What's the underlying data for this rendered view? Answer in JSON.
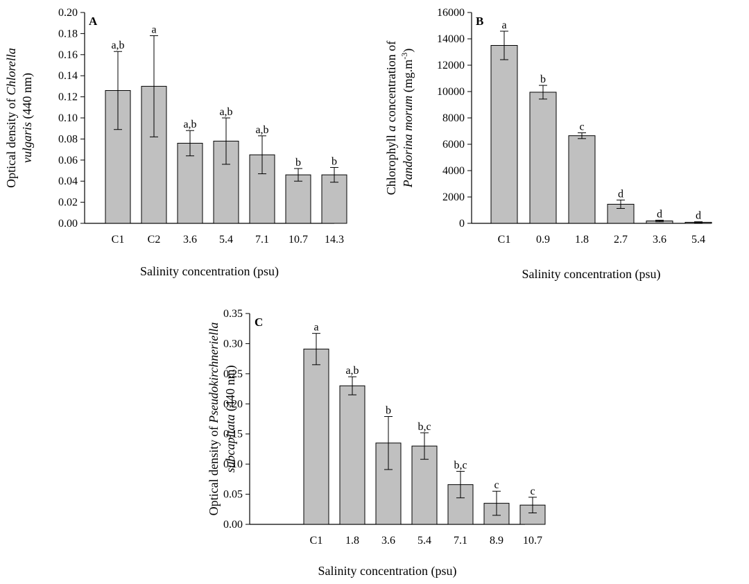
{
  "chart_data": [
    {
      "panel": "A",
      "type": "bar",
      "xlabel": "Salinity concentration (psu)",
      "ylabel": [
        {
          "text": "Optical density of "
        },
        {
          "text": "Chlorella",
          "italic": true
        },
        {
          "text": "vulgaris",
          "italic": true
        },
        {
          "text": " (440 nm)"
        }
      ],
      "ylim": [
        0,
        0.2
      ],
      "yticks": [
        "0.00",
        "0.02",
        "0.04",
        "0.06",
        "0.08",
        "0.10",
        "0.12",
        "0.14",
        "0.16",
        "0.18",
        "0.20"
      ],
      "categories": [
        "C1",
        "C2",
        "3.6",
        "5.4",
        "7.1",
        "10.7",
        "14.3"
      ],
      "values": [
        0.126,
        0.13,
        0.076,
        0.078,
        0.065,
        0.046,
        0.046
      ],
      "errors": [
        0.037,
        0.048,
        0.012,
        0.022,
        0.018,
        0.006,
        0.007
      ],
      "significance": [
        "a,b",
        "a",
        "a,b",
        "a,b",
        "a,b",
        "b",
        "b"
      ]
    },
    {
      "panel": "B",
      "type": "bar",
      "xlabel": "Salinity concentration (psu)",
      "ylabel": [
        {
          "text": "Chlorophyll "
        },
        {
          "text": "a",
          "italic": true
        },
        {
          "text": " concentration of"
        },
        {
          "text": "Pandorina morum",
          "italic": true
        },
        {
          "text": " (mg.m"
        },
        {
          "text": "-3",
          "sup": true
        },
        {
          "text": ")"
        }
      ],
      "ylim": [
        0,
        16000
      ],
      "yticks": [
        "0",
        "2000",
        "4000",
        "6000",
        "8000",
        "10000",
        "12000",
        "14000",
        "16000"
      ],
      "categories": [
        "C1",
        "0.9",
        "1.8",
        "2.7",
        "3.6",
        "5.4"
      ],
      "values": [
        13500,
        9950,
        6650,
        1450,
        180,
        80
      ],
      "errors": [
        1080,
        520,
        220,
        320,
        60,
        40
      ],
      "significance": [
        "a",
        "b",
        "c",
        "d",
        "d",
        "d"
      ]
    },
    {
      "panel": "C",
      "type": "bar",
      "xlabel": "Salinity concentration (psu)",
      "ylabel": [
        {
          "text": "Optical density of "
        },
        {
          "text": "Pseudokirchneriella",
          "italic": true
        },
        {
          "text": "subcapitata",
          "italic": true
        },
        {
          "text": " (440 nm)"
        }
      ],
      "ylim": [
        0,
        0.35
      ],
      "yticks": [
        "0.00",
        "0.05",
        "0.10",
        "0.15",
        "0.20",
        "0.25",
        "0.30",
        "0.35"
      ],
      "categories": [
        "C1",
        "1.8",
        "3.6",
        "5.4",
        "7.1",
        "8.9",
        "10.7"
      ],
      "values": [
        0.291,
        0.23,
        0.135,
        0.13,
        0.066,
        0.035,
        0.032
      ],
      "errors": [
        0.026,
        0.015,
        0.044,
        0.022,
        0.022,
        0.02,
        0.013
      ],
      "significance": [
        "a",
        "a,b",
        "b",
        "b,c",
        "b,c",
        "c",
        "c"
      ]
    }
  ]
}
